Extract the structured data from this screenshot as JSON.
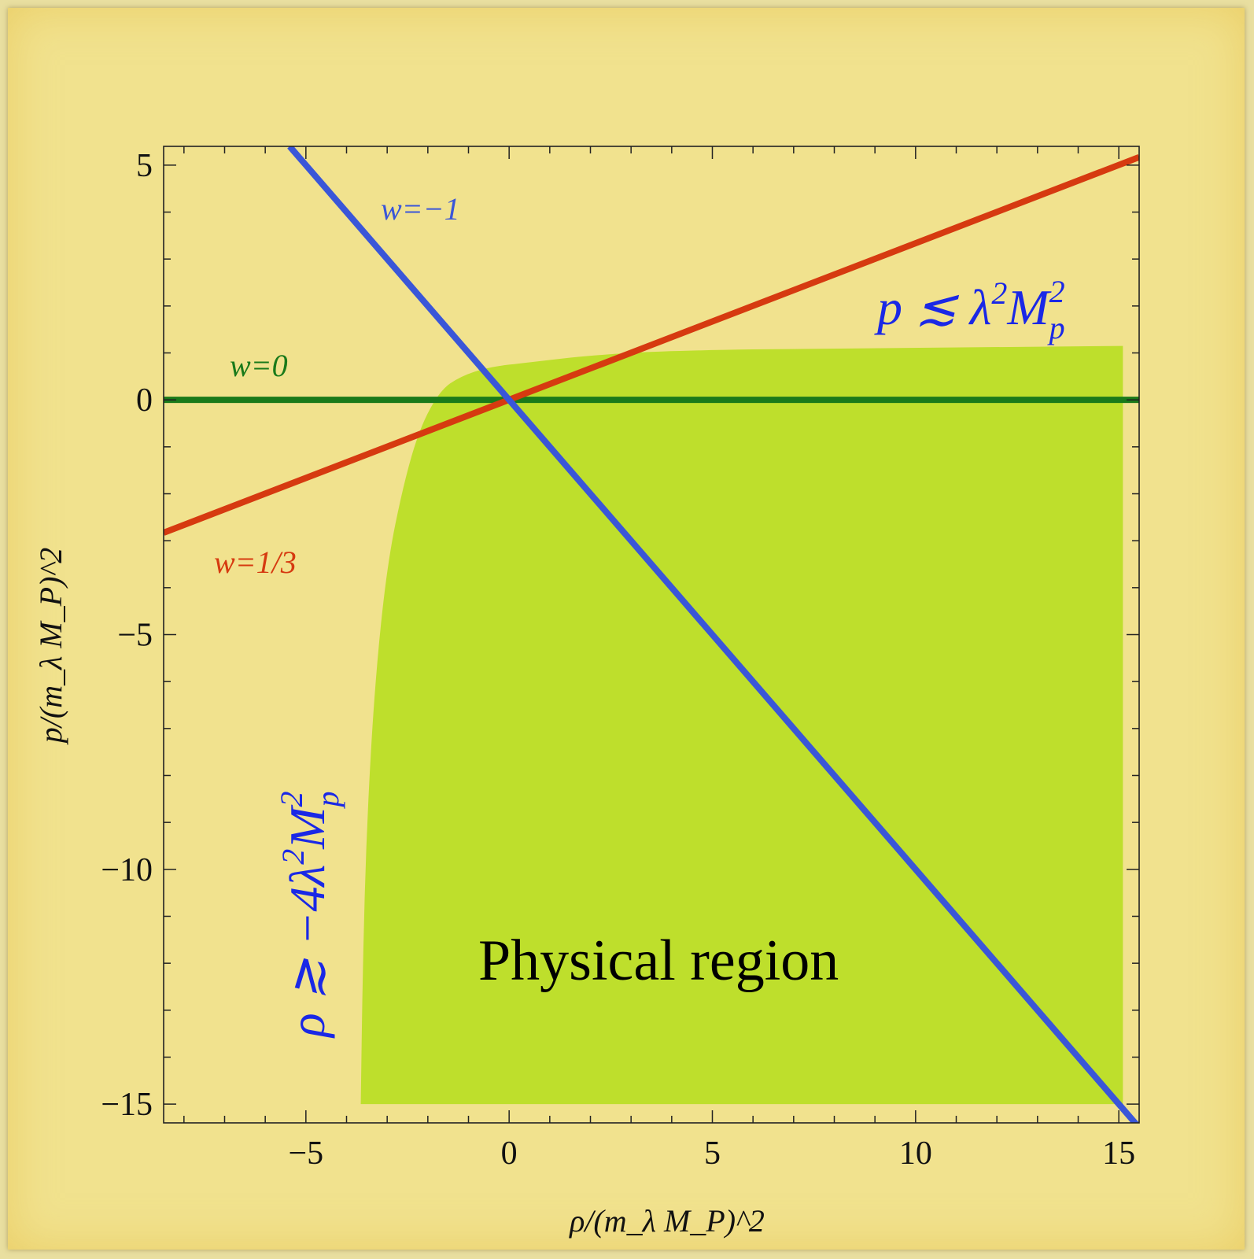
{
  "chart_data": {
    "type": "line",
    "xlabel": "ρ/(m_λ M_P)^2",
    "ylabel": "p/(m_λ M_P)^2",
    "xlim": [
      -8.5,
      15.5
    ],
    "ylim": [
      -15.4,
      5.4
    ],
    "xticks": [
      -5,
      0,
      5,
      10,
      15
    ],
    "xtick_labels": [
      "−5",
      "0",
      "5",
      "10",
      "15"
    ],
    "yticks": [
      5,
      0,
      -5,
      -10,
      -15
    ],
    "ytick_labels": [
      "5",
      "0",
      "−5",
      "−10",
      "−15"
    ],
    "grid": false,
    "colors": {
      "w_minus_1": "#3a56d8",
      "w_0": "#1a7a1a",
      "w_one_third": "#d63a10",
      "region": "#bedf2c",
      "annotation": "#1a28e6",
      "background": "#f1e28e"
    },
    "series": [
      {
        "name": "w=−1",
        "slope": -1,
        "color": "#3a56d8",
        "x": [
          -5.4,
          15.5
        ],
        "y": [
          5.4,
          -15.5
        ]
      },
      {
        "name": "w=0",
        "slope": 0,
        "color": "#1a7a1a",
        "x": [
          -8.5,
          15.5
        ],
        "y": [
          0,
          0
        ]
      },
      {
        "name": "w=1/3",
        "slope": 0.3333,
        "color": "#d63a10",
        "x": [
          -8.5,
          15.5
        ],
        "y": [
          -2.83,
          5.17
        ]
      }
    ],
    "region": {
      "label": "Physical region",
      "boundary": [
        [
          -3.65,
          -15
        ],
        [
          -3.6,
          -12
        ],
        [
          -3.5,
          -9
        ],
        [
          -3.3,
          -6
        ],
        [
          -3.0,
          -3.5
        ],
        [
          -2.6,
          -1.8
        ],
        [
          -2.2,
          -0.6
        ],
        [
          -1.7,
          0.2
        ],
        [
          -1.2,
          0.5
        ],
        [
          -0.5,
          0.7
        ],
        [
          0.5,
          0.8
        ],
        [
          2,
          0.95
        ],
        [
          4,
          1.05
        ],
        [
          8,
          1.1
        ],
        [
          15.1,
          1.15
        ],
        [
          15.1,
          -15
        ]
      ]
    },
    "annotations": {
      "p_bound": {
        "base": "p ≲ λ",
        "sup": "2",
        "base2": "M",
        "supsub_sup": "2",
        "supsub_sub": "p"
      },
      "rho_bound": {
        "base": "ρ ≳ −4λ",
        "sup": "2",
        "base2": "M",
        "supsub_sup": "2",
        "supsub_sub": "p"
      }
    }
  }
}
